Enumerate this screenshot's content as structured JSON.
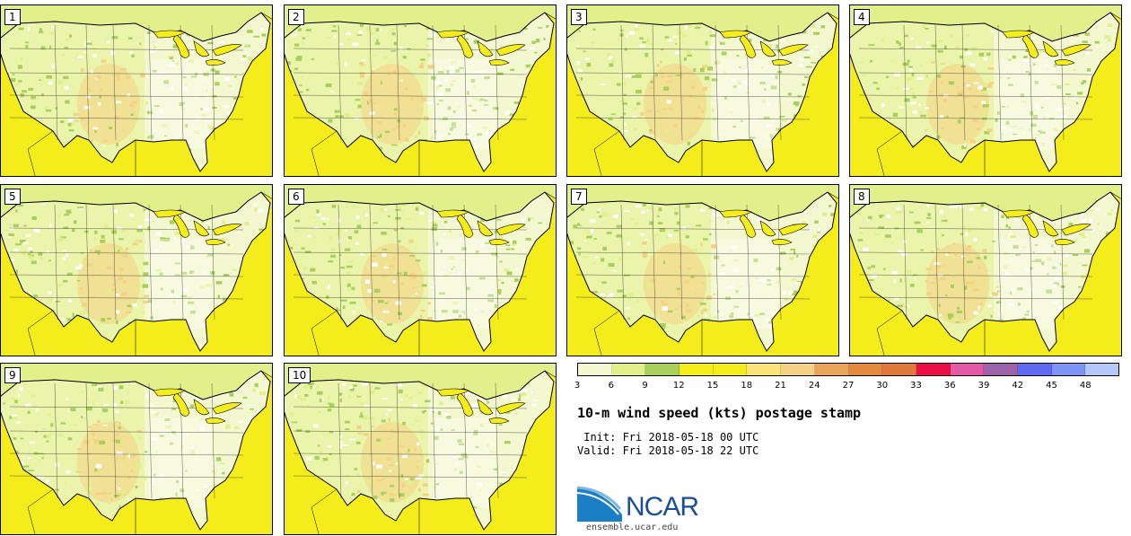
{
  "panels": [
    {
      "label": "1"
    },
    {
      "label": "2"
    },
    {
      "label": "3"
    },
    {
      "label": "4"
    },
    {
      "label": "5"
    },
    {
      "label": "6"
    },
    {
      "label": "7"
    },
    {
      "label": "8"
    },
    {
      "label": "9"
    },
    {
      "label": "10"
    }
  ],
  "colorbar": {
    "ticks": [
      "3",
      "6",
      "9",
      "12",
      "15",
      "18",
      "21",
      "24",
      "27",
      "30",
      "33",
      "36",
      "39",
      "42",
      "45",
      "48"
    ],
    "colors": [
      "#f4f8d0",
      "#e2f08c",
      "#a9cf5c",
      "#f5ec1c",
      "#f5ec1c",
      "#fbe57a",
      "#f5d184",
      "#e9a35a",
      "#e38a3f",
      "#df7a3c",
      "#ec1047",
      "#e45aa7",
      "#9a62a8",
      "#5f6af0",
      "#7f95f5",
      "#b4c8fb"
    ]
  },
  "title": "10-m wind speed (kts) postage stamp",
  "init_text": " Init: Fri 2018-05-18 00 UTC",
  "valid_text": "Valid: Fri 2018-05-18 22 UTC",
  "logo": {
    "text": "NCAR",
    "site": "ensemble.ucar.edu"
  },
  "colors": {
    "ocean": "#f5ec1c",
    "land_light": "#f4f8d0",
    "land_green": "#a9cf5c",
    "land_lime": "#e2f08c",
    "plains_orange": "#f5d184"
  }
}
